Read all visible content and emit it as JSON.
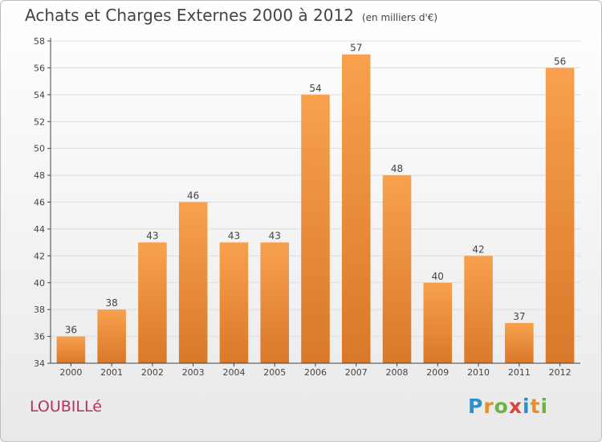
{
  "header": {
    "title": "Achats et Charges Externes 2000 à 2012",
    "unit_note": "(en milliers d'€)"
  },
  "place_name": "LOUBILLé",
  "logo": {
    "text": "Proxiti",
    "letters": [
      {
        "ch": "P",
        "color": "#2a8fd0"
      },
      {
        "ch": "r",
        "color": "#e5902a"
      },
      {
        "ch": "o",
        "color": "#6cb33f"
      },
      {
        "ch": "x",
        "color": "#e0433b"
      },
      {
        "ch": "i",
        "color": "#2a8fd0"
      },
      {
        "ch": "t",
        "color": "#e5902a"
      },
      {
        "ch": "i",
        "color": "#6cb33f"
      }
    ]
  },
  "colors": {
    "bar_light": "#f7a14e",
    "bar_dark": "#d9782a",
    "axis": "#444444",
    "grid": "#dddddd",
    "label": "#444444"
  },
  "chart_data": {
    "type": "bar",
    "title": "Achats et Charges Externes 2000 à 2012",
    "subtitle": "(en milliers d'€)",
    "xlabel": "",
    "ylabel": "",
    "categories": [
      "2000",
      "2001",
      "2002",
      "2003",
      "2004",
      "2005",
      "2006",
      "2007",
      "2008",
      "2009",
      "2010",
      "2011",
      "2012"
    ],
    "values": [
      36,
      38,
      43,
      46,
      43,
      43,
      54,
      57,
      48,
      40,
      42,
      37,
      56
    ],
    "ylim": [
      34,
      58
    ],
    "yticks": [
      34,
      36,
      38,
      40,
      42,
      44,
      46,
      48,
      50,
      52,
      54,
      56,
      58
    ],
    "grid": true,
    "data_labels": true,
    "legend": "none"
  }
}
